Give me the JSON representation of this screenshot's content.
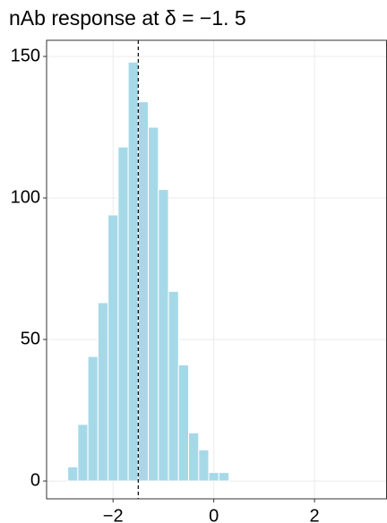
{
  "chart_data": {
    "type": "histogram",
    "title": "nAb response at δ = −1. 5",
    "bins": [
      -2.9,
      -2.7,
      -2.5,
      -2.3,
      -2.1,
      -1.9,
      -1.7,
      -1.5,
      -1.3,
      -1.1,
      -0.9,
      -0.7,
      -0.5,
      -0.3,
      -0.1,
      0.1,
      0.3
    ],
    "values": [
      5,
      20,
      44,
      63,
      94,
      118,
      148,
      134,
      125,
      103,
      67,
      41,
      17,
      11,
      3,
      3
    ],
    "color": "#a6d9e8",
    "xlim": [
      -3.32,
      3.43
    ],
    "xticks": [
      {
        "value": -2,
        "label": "−2"
      },
      0,
      2
    ],
    "ylim": [
      -6.3,
      155.7
    ],
    "yticks": [
      0,
      50,
      100,
      150
    ],
    "grid": true,
    "vline": -1.5
  }
}
